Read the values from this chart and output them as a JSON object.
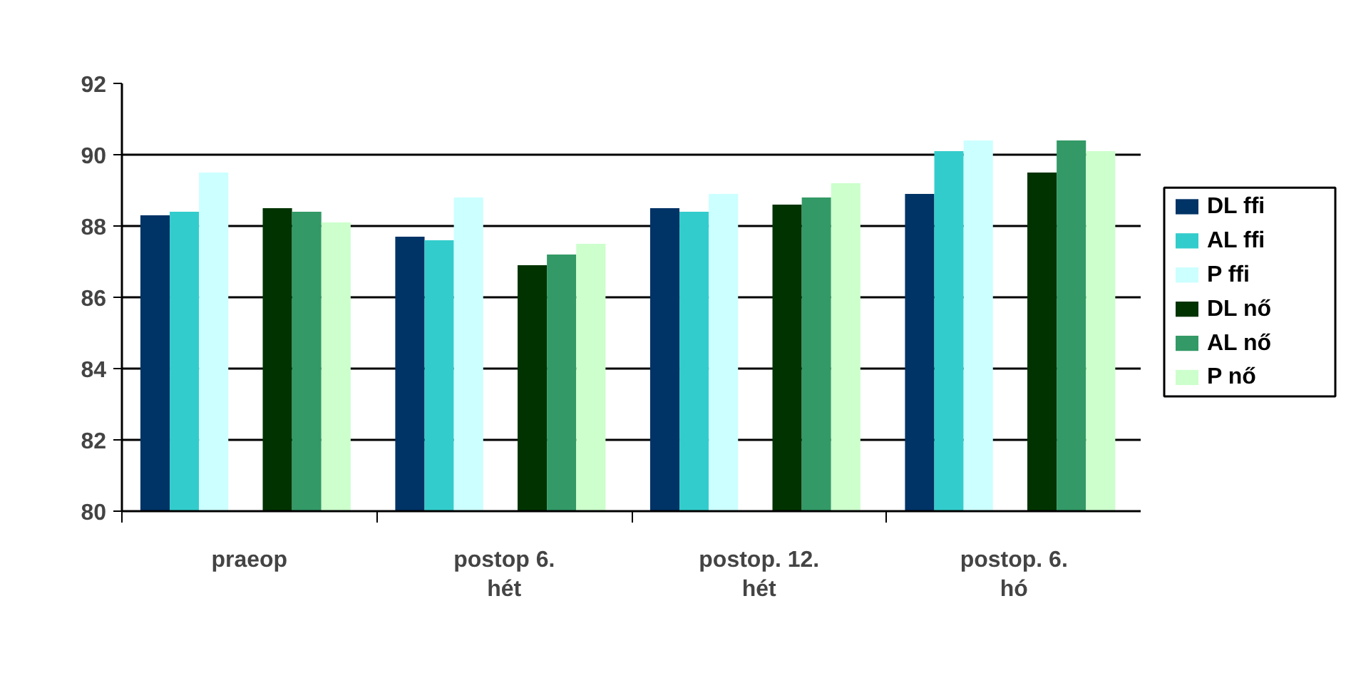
{
  "chart_data": {
    "type": "bar",
    "categories": [
      "praeop",
      "postop 6. hét",
      "postop. 12. hét",
      "postop. 6. hó"
    ],
    "series": [
      {
        "name": "DL ffi",
        "color": "#003366",
        "values": [
          88.3,
          87.7,
          88.5,
          88.9
        ]
      },
      {
        "name": "AL ffi",
        "color": "#33cccc",
        "values": [
          88.4,
          87.6,
          88.4,
          90.1
        ]
      },
      {
        "name": "P ffi",
        "color": "#ccffff",
        "values": [
          89.5,
          88.8,
          88.9,
          90.4
        ]
      },
      {
        "name": "DL nő",
        "color": "#003300",
        "values": [
          88.5,
          86.9,
          88.6,
          89.5
        ]
      },
      {
        "name": "AL nő",
        "color": "#339966",
        "values": [
          88.4,
          87.2,
          88.8,
          90.4
        ]
      },
      {
        "name": "P nő",
        "color": "#ccffcc",
        "values": [
          88.1,
          87.5,
          89.2,
          90.1
        ]
      }
    ],
    "ylim": [
      80,
      92
    ],
    "yticks": [
      80,
      82,
      84,
      86,
      88,
      90,
      92
    ],
    "grid": "y",
    "legend": "right"
  }
}
